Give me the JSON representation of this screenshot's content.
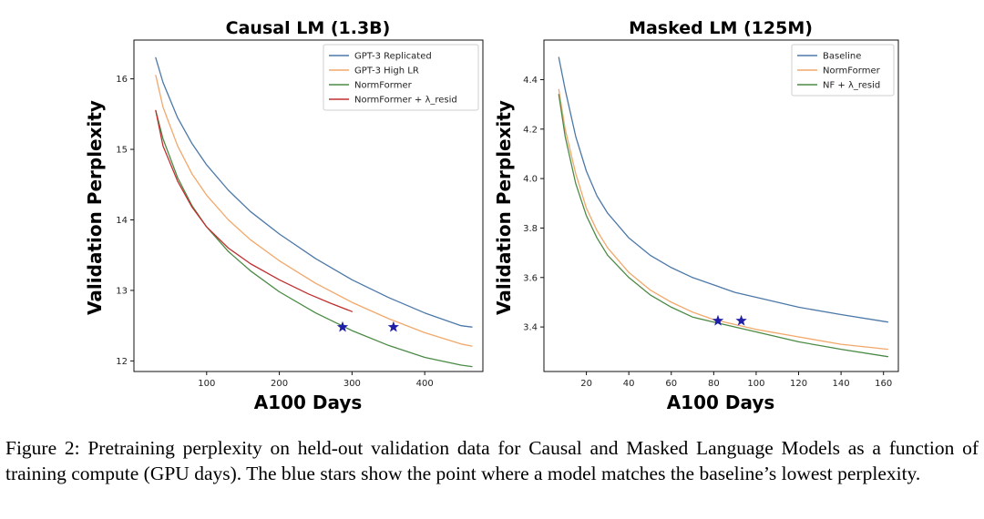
{
  "caption": "Figure 2: Pretraining perplexity on held-out validation data for Causal and Masked Language Models as a function of training compute (GPU days). The blue stars show the point where a model matches the baseline’s lowest perplexity.",
  "colors": {
    "blue": "#4c78a8",
    "orange": "#f2a86b",
    "green": "#4a8a45",
    "red": "#c03030",
    "star": "#1f1fa8"
  },
  "chart_data": [
    {
      "type": "line",
      "title": "Causal LM (1.3B)",
      "xlabel": "A100 Days",
      "ylabel": "Validation Perplexity",
      "xlim": [
        0,
        480
      ],
      "ylim": [
        11.85,
        16.55
      ],
      "xticks": [
        100,
        200,
        300,
        400
      ],
      "yticks": [
        12,
        13,
        14,
        15,
        16
      ],
      "grid": false,
      "legend_position": "top-right",
      "series": [
        {
          "name": "GPT-3 Replicated",
          "color": "blue",
          "x": [
            30,
            40,
            60,
            80,
            100,
            130,
            160,
            200,
            250,
            300,
            350,
            400,
            450,
            465
          ],
          "y": [
            16.3,
            15.95,
            15.45,
            15.08,
            14.78,
            14.42,
            14.12,
            13.8,
            13.45,
            13.15,
            12.9,
            12.68,
            12.5,
            12.48
          ]
        },
        {
          "name": "GPT-3 High LR",
          "color": "orange",
          "x": [
            30,
            40,
            60,
            80,
            100,
            130,
            160,
            200,
            250,
            300,
            350,
            400,
            450,
            465
          ],
          "y": [
            16.05,
            15.6,
            15.05,
            14.65,
            14.35,
            14.0,
            13.72,
            13.42,
            13.1,
            12.83,
            12.6,
            12.4,
            12.24,
            12.21
          ]
        },
        {
          "name": "NormFormer",
          "color": "green",
          "x": [
            30,
            40,
            60,
            80,
            100,
            130,
            160,
            200,
            250,
            300,
            350,
            400,
            450,
            465
          ],
          "y": [
            15.55,
            15.15,
            14.6,
            14.2,
            13.9,
            13.55,
            13.28,
            12.98,
            12.68,
            12.43,
            12.22,
            12.05,
            11.94,
            11.92
          ]
        },
        {
          "name": "NormFormer + λ_resid",
          "color": "red",
          "x": [
            30,
            40,
            60,
            80,
            100,
            130,
            160,
            200,
            240,
            270,
            300
          ],
          "y": [
            15.55,
            15.05,
            14.55,
            14.18,
            13.9,
            13.6,
            13.38,
            13.15,
            12.95,
            12.82,
            12.7
          ]
        }
      ],
      "markers": [
        {
          "x": 287,
          "y": 12.48,
          "symbol": "star",
          "color": "star"
        },
        {
          "x": 357,
          "y": 12.48,
          "symbol": "star",
          "color": "star"
        }
      ]
    },
    {
      "type": "line",
      "title": "Masked LM (125M)",
      "xlabel": "A100 Days",
      "ylabel": "Validation Perplexity",
      "xlim": [
        0,
        167
      ],
      "ylim": [
        3.22,
        4.56
      ],
      "xticks": [
        20,
        40,
        60,
        80,
        100,
        120,
        140,
        160
      ],
      "yticks": [
        3.4,
        3.6,
        3.8,
        4.0,
        4.2,
        4.4
      ],
      "grid": false,
      "legend_position": "top-right",
      "series": [
        {
          "name": "Baseline",
          "color": "blue",
          "x": [
            7,
            10,
            15,
            20,
            25,
            30,
            40,
            50,
            60,
            70,
            80,
            90,
            100,
            120,
            140,
            162
          ],
          "y": [
            4.49,
            4.36,
            4.17,
            4.03,
            3.93,
            3.86,
            3.76,
            3.69,
            3.64,
            3.6,
            3.57,
            3.54,
            3.52,
            3.48,
            3.45,
            3.42
          ]
        },
        {
          "name": "NormFormer",
          "color": "orange",
          "x": [
            7,
            10,
            15,
            20,
            25,
            30,
            40,
            50,
            60,
            70,
            80,
            90,
            100,
            120,
            140,
            162
          ],
          "y": [
            4.36,
            4.2,
            4.02,
            3.88,
            3.79,
            3.72,
            3.62,
            3.55,
            3.5,
            3.46,
            3.43,
            3.41,
            3.39,
            3.36,
            3.33,
            3.31
          ]
        },
        {
          "name": "NF + λ_resid",
          "color": "green",
          "x": [
            7,
            10,
            15,
            20,
            25,
            30,
            40,
            50,
            60,
            70,
            80,
            90,
            100,
            120,
            140,
            162
          ],
          "y": [
            4.34,
            4.17,
            3.98,
            3.85,
            3.76,
            3.69,
            3.6,
            3.53,
            3.48,
            3.44,
            3.42,
            3.4,
            3.38,
            3.34,
            3.31,
            3.28
          ]
        }
      ],
      "markers": [
        {
          "x": 82,
          "y": 3.425,
          "symbol": "star",
          "color": "star"
        },
        {
          "x": 93,
          "y": 3.425,
          "symbol": "star",
          "color": "star"
        }
      ]
    }
  ]
}
